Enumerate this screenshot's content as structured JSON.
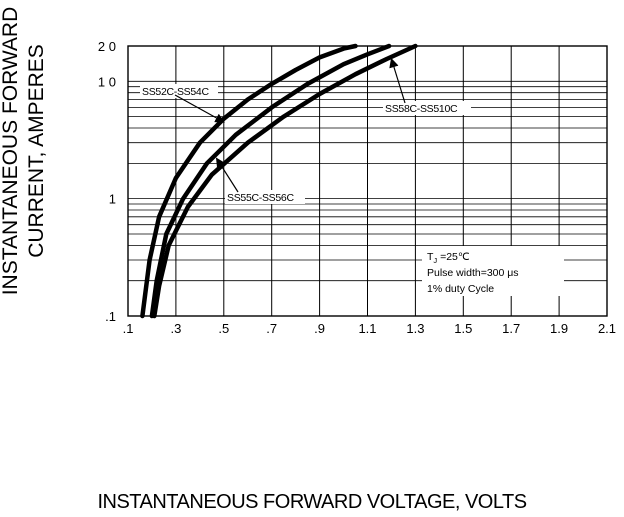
{
  "chart_data": {
    "type": "line",
    "xlabel": "INSTANTANEOUS FORWARD VOLTAGE, VOLTS",
    "ylabel_lines": [
      "INSTANTANEOUS FORWARD",
      "CURRENT, AMPERES"
    ],
    "xlim": [
      0.1,
      2.1
    ],
    "ylim": [
      0.1,
      20
    ],
    "yscale": "log",
    "xticks": [
      ".1",
      ".3",
      ".5",
      ".7",
      ".9",
      "1.1",
      "1.3",
      "1.5",
      "1.7",
      "1.9",
      "2.1"
    ],
    "yticks": [
      ".1",
      "1",
      "1 0",
      "2 0"
    ],
    "grid": true,
    "series": [
      {
        "name": "SS52C-SS54C",
        "x": [
          0.16,
          0.19,
          0.23,
          0.3,
          0.4,
          0.5,
          0.6,
          0.7,
          0.8,
          0.9,
          1.0,
          1.05
        ],
        "y": [
          0.1,
          0.3,
          0.7,
          1.5,
          3.0,
          4.8,
          7.0,
          9.5,
          12.5,
          16.0,
          19.0,
          20.0
        ]
      },
      {
        "name": "SS55C-SS56C",
        "x": [
          0.2,
          0.22,
          0.26,
          0.33,
          0.43,
          0.55,
          0.7,
          0.85,
          1.0,
          1.1,
          1.19
        ],
        "y": [
          0.1,
          0.2,
          0.5,
          1.0,
          2.0,
          3.5,
          6.0,
          9.5,
          14.0,
          17.0,
          20.0
        ]
      },
      {
        "name": "SS58C-SS510C",
        "x": [
          0.21,
          0.23,
          0.27,
          0.35,
          0.45,
          0.6,
          0.75,
          0.9,
          1.05,
          1.18,
          1.3
        ],
        "y": [
          0.1,
          0.18,
          0.4,
          0.85,
          1.6,
          3.0,
          5.0,
          7.8,
          11.5,
          15.5,
          20.0
        ]
      }
    ],
    "annotations": [
      {
        "text": "SS52C-SS54C",
        "points_to": [
          0.5,
          4.5
        ]
      },
      {
        "text": "SS58C-SS510C",
        "points_to": [
          1.2,
          15.5
        ]
      },
      {
        "text": "SS55C-SS56C",
        "points_to": [
          0.47,
          2.2
        ]
      }
    ],
    "legend_box": {
      "position": "bottom-right",
      "lines": [
        "T",
        "J",
        " =25℃",
        "Pulse width=300 μs",
        "1% duty Cycle"
      ]
    }
  }
}
